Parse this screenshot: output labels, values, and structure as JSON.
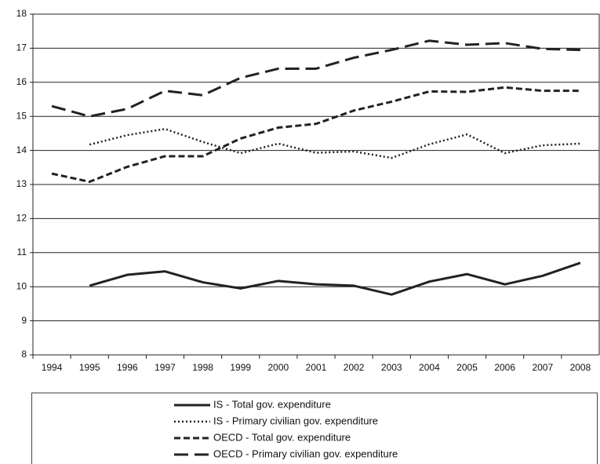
{
  "chart_data": {
    "type": "line",
    "categories": [
      "1994",
      "1995",
      "1996",
      "1997",
      "1998",
      "1999",
      "2000",
      "2001",
      "2002",
      "2003",
      "2004",
      "2005",
      "2006",
      "2007",
      "2008"
    ],
    "series": [
      {
        "name": "IS - Total gov. expenditure",
        "color": "#222222",
        "dash": "solid",
        "values": [
          null,
          10.03,
          10.35,
          10.45,
          10.13,
          9.95,
          10.17,
          10.07,
          10.03,
          9.77,
          10.15,
          10.37,
          10.07,
          10.32,
          10.7
        ]
      },
      {
        "name": "IS - Primary civilian gov. expenditure",
        "color": "#222222",
        "dash": "dotted",
        "values": [
          null,
          14.17,
          14.45,
          14.63,
          14.25,
          13.92,
          14.2,
          13.93,
          13.97,
          13.78,
          14.18,
          14.47,
          13.92,
          14.15,
          14.2
        ]
      },
      {
        "name": "OECD - Total gov. expenditure",
        "color": "#222222",
        "dash": "dashed",
        "values": [
          13.32,
          13.08,
          13.52,
          13.83,
          13.83,
          14.35,
          14.67,
          14.78,
          15.17,
          15.43,
          15.73,
          15.72,
          15.85,
          15.75,
          15.75
        ]
      },
      {
        "name": "OECD - Primary civilian gov. expenditure",
        "color": "#222222",
        "dash": "longdash",
        "values": [
          15.3,
          15.0,
          15.22,
          15.75,
          15.62,
          16.13,
          16.4,
          16.4,
          16.72,
          16.95,
          17.22,
          17.1,
          17.15,
          16.98,
          16.95
        ]
      }
    ],
    "ylim": [
      8,
      18
    ],
    "yticks": [
      8,
      9,
      10,
      11,
      12,
      13,
      14,
      15,
      16,
      17,
      18
    ],
    "grid": true,
    "legend": "bottom"
  }
}
